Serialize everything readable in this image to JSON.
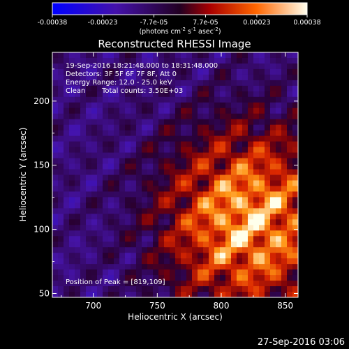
{
  "chart_data": {
    "type": "heatmap",
    "title": "Reconstructed RHESSI Image",
    "xlabel": "Heliocentric X (arcsec)",
    "ylabel": "Heliocentric Y (arcsec)",
    "xlim": [
      668,
      860
    ],
    "ylim": [
      47,
      238
    ],
    "x_ticks": [
      {
        "value": 700,
        "label": "700"
      },
      {
        "value": 750,
        "label": "750"
      },
      {
        "value": 800,
        "label": "800"
      },
      {
        "value": 850,
        "label": "850"
      }
    ],
    "y_ticks": [
      {
        "value": 50,
        "label": "50"
      },
      {
        "value": 100,
        "label": "100"
      },
      {
        "value": 150,
        "label": "150"
      },
      {
        "value": 200,
        "label": "200"
      }
    ],
    "colorbar": {
      "range": [
        -0.00038,
        0.00038
      ],
      "ticks": [
        {
          "value": -0.00038,
          "label": "-0.00038"
        },
        {
          "value": -0.00023,
          "label": "-0.00023"
        },
        {
          "value": -7.7e-05,
          "label": "-7.7e-05"
        },
        {
          "value": 7.7e-05,
          "label": "7.7e-05"
        },
        {
          "value": 0.00023,
          "label": "0.00023"
        },
        {
          "value": 0.00038,
          "label": "0.00038"
        }
      ],
      "unit_label": {
        "base": "(photons cm",
        "sup1": "-2",
        "mid1": " s",
        "sup2": "-1",
        "mid2": " asec",
        "sup3": "-2",
        "end": ")"
      }
    },
    "info_lines": [
      "19-Sep-2016 18:21:48.000 to 18:31:48.000",
      "Detectors: 3F 5F 6F 7F 8F, Att 0",
      "Energy Range: 12.0 - 25.0 keV"
    ],
    "clean_label": "Clean",
    "total_counts_label": "Total counts: 3.50E+03",
    "peak_label": "Position of Peak = [819,109]",
    "peak_position": [
      819,
      109
    ],
    "energy_range_kev": [
      12.0,
      25.0
    ],
    "total_counts": 3500,
    "grid": false
  },
  "footer": {
    "timestamp": "27-Sep-2016 03:06"
  }
}
